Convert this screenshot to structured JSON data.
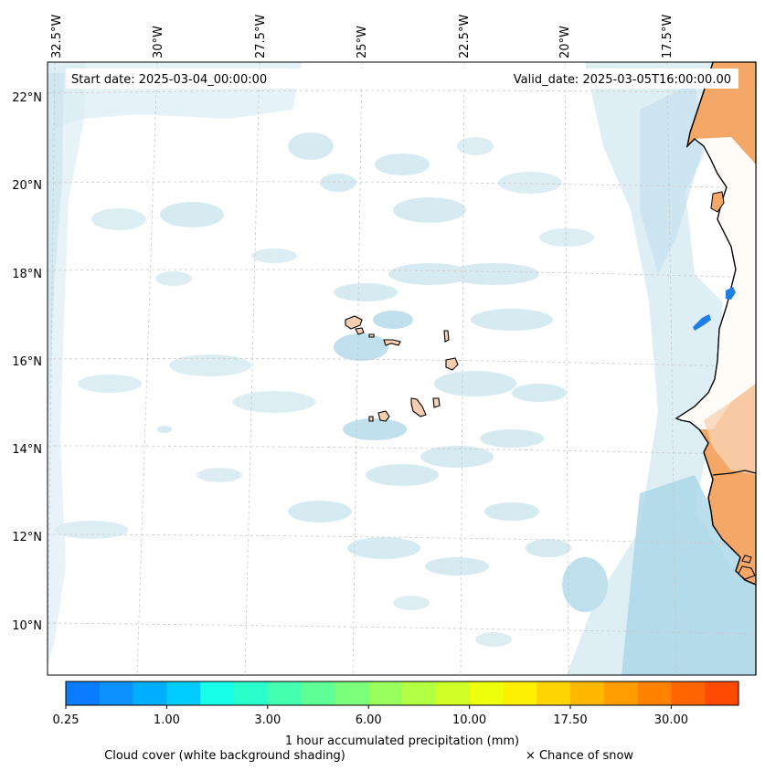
{
  "map": {
    "region": "Cape Verde and West African coast",
    "start_date": "Start date: 2025-03-04_00:00:00",
    "valid_date": "Valid_date: 2025-03-05T16:00:00.00",
    "longitude_labels": [
      "32.5°W",
      "30°W",
      "27.5°W",
      "25°W",
      "22.5°W",
      "20°W",
      "17.5°W"
    ],
    "latitude_labels": [
      "22°N",
      "20°N",
      "18°N",
      "16°N",
      "14°N",
      "12°N",
      "10°N"
    ],
    "colors": {
      "land": "#f4a766",
      "island_land": "#f7cfb0",
      "cloud_light": "#d6ebf3",
      "cloud_mid": "#b5dbea",
      "cloud_dark": "#9fd0e3",
      "coastline": "#000000",
      "precip_blue": "#1f7fe6",
      "grid": "#c8c8c8"
    }
  },
  "colorbar": {
    "colors": [
      "#0a7cff",
      "#0a93ff",
      "#00adff",
      "#00ccff",
      "#17ffe8",
      "#2affcc",
      "#45ffb0",
      "#60ff95",
      "#7cff7a",
      "#98ff5e",
      "#b3ff43",
      "#cfff27",
      "#ecff0b",
      "#ffef00",
      "#ffd400",
      "#ffb800",
      "#ff9c00",
      "#ff8100",
      "#ff6600",
      "#ff4a00"
    ],
    "tick_labels": [
      "0.25",
      "1.00",
      "3.00",
      "6.00",
      "10.00",
      "17.50",
      "30.00"
    ],
    "title": "1 hour accumulated precipitation (mm)"
  },
  "legend": {
    "cloud_cover": "Cloud cover (white background shading)",
    "snow": "× Chance of snow"
  }
}
